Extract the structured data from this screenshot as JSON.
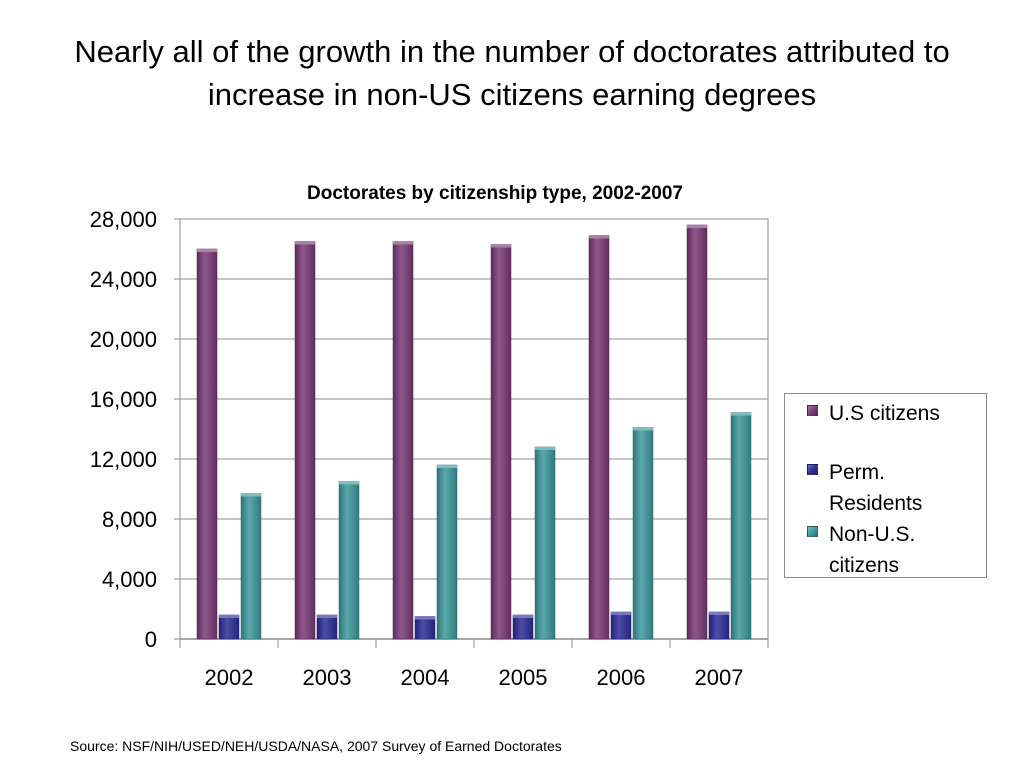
{
  "slide": {
    "title": "Nearly all of the growth in the number of doctorates attributed to increase in non-US citizens earning degrees",
    "source": "Source: NSF/NIH/USED/NEH/USDA/NASA, 2007 Survey of Earned Doctorates"
  },
  "chart_data": {
    "type": "bar",
    "title": "Doctorates by citizenship type, 2002-2007",
    "xlabel": "",
    "ylabel": "",
    "categories": [
      "2002",
      "2003",
      "2004",
      "2005",
      "2006",
      "2007"
    ],
    "series": [
      {
        "name": "U.S citizens",
        "color": "#7b3b78",
        "values": [
          26000,
          26500,
          26500,
          26300,
          26900,
          27600
        ]
      },
      {
        "name": "Perm. Residents",
        "color": "#2d2d9a",
        "values": [
          1600,
          1600,
          1500,
          1600,
          1800,
          1800
        ]
      },
      {
        "name": "Non-U.S. citizens",
        "color": "#3d9a9e",
        "values": [
          9700,
          10500,
          11600,
          12800,
          14100,
          15100
        ]
      }
    ],
    "ylim": [
      0,
      28000
    ],
    "yticks": [
      0,
      4000,
      8000,
      12000,
      16000,
      20000,
      24000,
      28000
    ],
    "ytick_labels": [
      "0",
      "4,000",
      "8,000",
      "12,000",
      "16,000",
      "20,000",
      "24,000",
      "28,000"
    ],
    "grid": true,
    "legend_position": "right"
  }
}
